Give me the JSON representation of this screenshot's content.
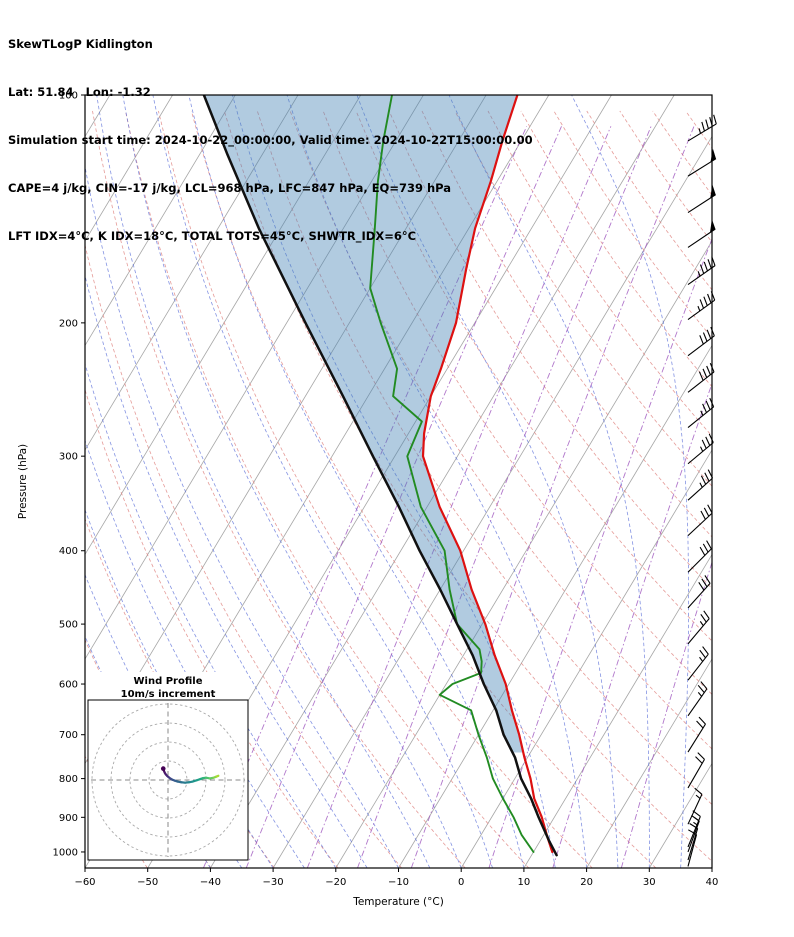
{
  "header": {
    "title": "SkewTLogP Kidlington",
    "location": "Lat: 51.84   Lon: -1.32",
    "times": "Simulation start time: 2024-10-22_00:00:00, Valid time: 2024-10-22T15:00:00.00",
    "indices1": "CAPE=4 j/kg, CIN=-17 j/kg, LCL=968 hPa, LFC=847 hPa, EQ=739 hPa",
    "indices2": "LFT IDX=4°C, K IDX=18°C, TOTAL TOTS=45°C, SHWTR_IDX=6°C"
  },
  "chart_data": {
    "type": "line",
    "diagram": "skew-t-log-p",
    "title": "SkewTLogP Kidlington",
    "xlabel": "Temperature (°C)",
    "ylabel": "Pressure (hPa)",
    "xlim": [
      -60,
      40
    ],
    "p_top": 100,
    "p_bottom": 1050,
    "x_ticks": [
      -60,
      -50,
      -40,
      -30,
      -20,
      -10,
      0,
      10,
      20,
      30,
      40
    ],
    "p_ticks": [
      100,
      200,
      300,
      400,
      500,
      600,
      700,
      800,
      900,
      1000
    ],
    "skew_slope": 0.6,
    "shade_bottom_hPa": 739,
    "shade_top_hPa": 100,
    "temperature_profile": {
      "pressure_hPa": [
        1000,
        950,
        900,
        850,
        800,
        750,
        700,
        650,
        600,
        550,
        500,
        450,
        400,
        350,
        300,
        280,
        250,
        230,
        200,
        170,
        150,
        130,
        115,
        100
      ],
      "temp_C": [
        13,
        10.5,
        8,
        5,
        2.5,
        -0.5,
        -3.5,
        -7,
        -10.5,
        -15,
        -19.5,
        -25,
        -30.5,
        -38,
        -45.5,
        -47.5,
        -50,
        -51,
        -53,
        -56.5,
        -59,
        -61,
        -63,
        -65
      ]
    },
    "dewpoint_profile": {
      "pressure_hPa": [
        1000,
        950,
        900,
        850,
        800,
        750,
        700,
        650,
        620,
        600,
        580,
        560,
        540,
        500,
        450,
        400,
        350,
        300,
        270,
        250,
        230,
        200,
        180,
        150,
        130,
        115,
        100
      ],
      "temp_C": [
        10,
        6.5,
        3.5,
        0,
        -3.5,
        -6.5,
        -10,
        -13.5,
        -20,
        -19,
        -15.5,
        -16.5,
        -18,
        -24,
        -28.5,
        -33,
        -41,
        -48,
        -49,
        -56,
        -58,
        -65,
        -70,
        -75,
        -79,
        -82,
        -85
      ]
    },
    "parcel_profile": {
      "pressure_hPa": [
        1010,
        968,
        900,
        850,
        800,
        750,
        700,
        650,
        600,
        550,
        500,
        450,
        400,
        350,
        300,
        250,
        200,
        150,
        120,
        100
      ],
      "temp_C": [
        14,
        11.5,
        7.5,
        4.5,
        1,
        -2,
        -6,
        -9.5,
        -14,
        -18.5,
        -24,
        -30,
        -37,
        -44.5,
        -53.5,
        -64,
        -77,
        -93.5,
        -105.5,
        -115
      ]
    },
    "background": {
      "isotherms_C": {
        "min": -130,
        "max": 40,
        "step": 10
      },
      "dry_adiabats_K": {
        "min": 210,
        "max": 470,
        "step": 10
      },
      "moist_adiabats_start_C": {
        "min": -40,
        "max": 45,
        "step": 5
      },
      "mixing_ratio_kg_kg": [
        0.0001,
        0.0002,
        0.0005,
        0.001,
        0.002,
        0.005,
        0.01,
        0.02
      ]
    },
    "colors": {
      "isotherm": "#a6a6a6",
      "dry_adiabat": "#e08a86",
      "moist_adiabat": "#5b6fd8",
      "mixing_ratio": "#a35fc2",
      "temperature": "#dd1111",
      "dewpoint": "#228b22",
      "parcel": "#111111",
      "shade": "#4682b4"
    },
    "wind_barbs": {
      "pressure_hPa": [
        1045,
        1025,
        1000,
        985,
        919,
        823,
        738,
        661,
        593,
        531,
        476,
        427,
        382,
        343,
        307,
        275,
        247,
        221,
        198,
        178,
        159,
        143,
        128,
        115
      ],
      "speed_kt": [
        12,
        12,
        15,
        15,
        15,
        20,
        20,
        25,
        25,
        25,
        30,
        30,
        30,
        35,
        35,
        35,
        40,
        40,
        45,
        45,
        50,
        50,
        50,
        45
      ],
      "direction_deg": [
        195,
        197,
        200,
        202,
        205,
        210,
        212,
        215,
        218,
        220,
        222,
        225,
        227,
        228,
        230,
        231,
        232,
        233,
        234,
        235,
        236,
        237,
        238,
        239
      ]
    },
    "hodograph": {
      "title": "Wind Profile",
      "subtitle": "10m/s increment",
      "ring_increment_ms": 10,
      "u_ms": [
        -2.5,
        -2.2,
        -1.8,
        -1.2,
        -0.5,
        0.3,
        1.2,
        2.2,
        3.5,
        5,
        7,
        9,
        11,
        13,
        15,
        17,
        18.5,
        20,
        22,
        24,
        25.5,
        26.5
      ],
      "v_ms": [
        6,
        5,
        4,
        3,
        2.2,
        1.5,
        0.8,
        0.2,
        -0.3,
        -0.8,
        -1.2,
        -1.4,
        -1.2,
        -0.8,
        -0.2,
        0.5,
        1,
        1.2,
        0.8,
        1.2,
        1.8,
        2.2
      ],
      "colors": [
        "#440154",
        "#46085c",
        "#481467",
        "#481d6f",
        "#472a7a",
        "#453781",
        "#3f4889",
        "#3a538b",
        "#355e8d",
        "#30698e",
        "#2b748e",
        "#277f8e",
        "#23898e",
        "#1f948c",
        "#1e9f88",
        "#24aa83",
        "#35b779",
        "#4ac16d",
        "#64cb5f",
        "#84d44b",
        "#a8db34"
      ]
    }
  }
}
